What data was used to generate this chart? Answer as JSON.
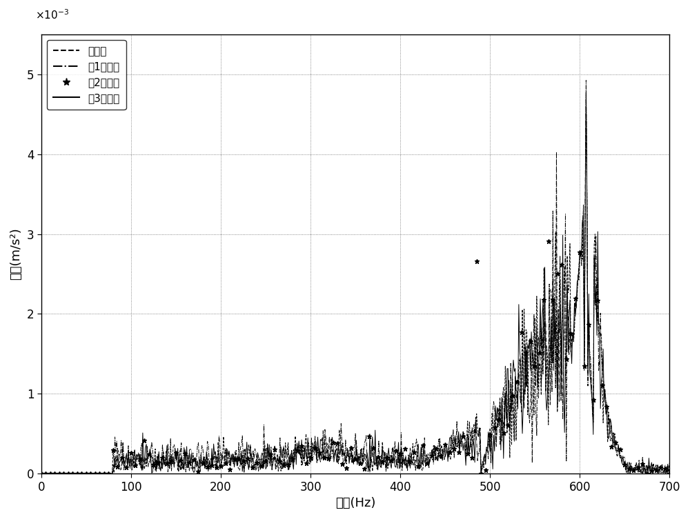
{
  "xlabel": "频率(Hz)",
  "ylabel": "幅値(m/s²)",
  "xlim": [
    0,
    700
  ],
  "ylim": [
    0,
    0.0055
  ],
  "yticks": [
    0,
    0.001,
    0.002,
    0.003,
    0.004,
    0.005
  ],
  "ytick_labels": [
    "0",
    "1",
    "2",
    "3",
    "4",
    "5"
  ],
  "xticks": [
    0,
    100,
    200,
    300,
    400,
    500,
    600,
    700
  ],
  "legend_labels": [
    "吸芯前",
    "第1次吸芯",
    "第2次吸芯",
    "第3次吸芯"
  ],
  "seed": 0
}
